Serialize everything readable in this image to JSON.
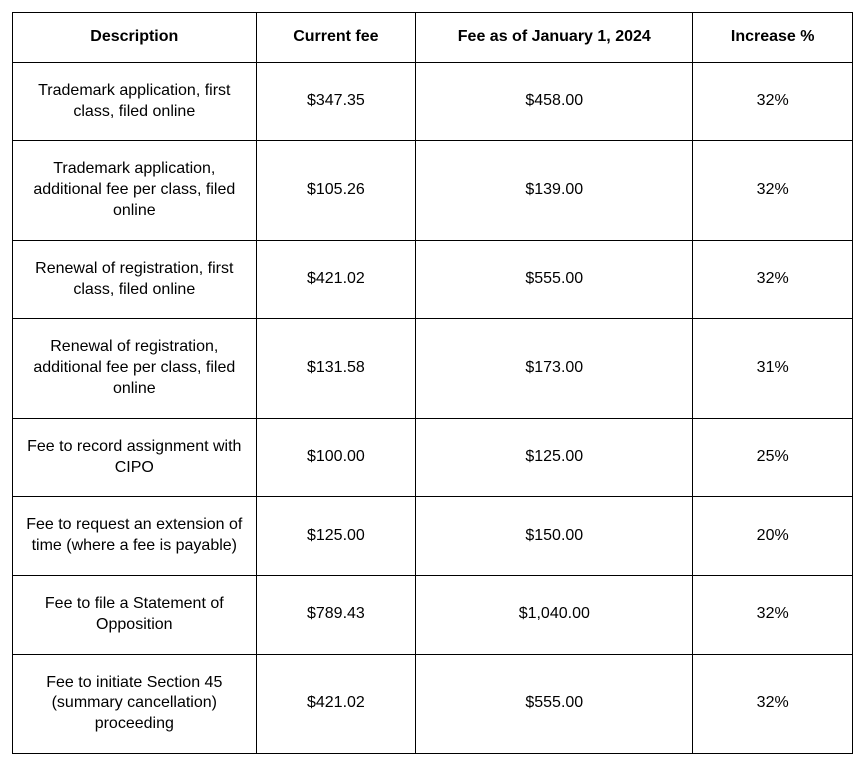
{
  "table": {
    "columns": [
      "Description",
      "Current fee",
      "Fee as of January 1, 2024",
      "Increase %"
    ],
    "rows": [
      {
        "description": "Trademark application, first class, filed online",
        "current": "$347.35",
        "new": "$458.00",
        "increase": "32%"
      },
      {
        "description": "Trademark application, additional fee per class, filed online",
        "current": "$105.26",
        "new": "$139.00",
        "increase": "32%"
      },
      {
        "description": "Renewal of registration, first class, filed online",
        "current": "$421.02",
        "new": "$555.00",
        "increase": "32%"
      },
      {
        "description": "Renewal of registration, additional fee per class, filed online",
        "current": "$131.58",
        "new": "$173.00",
        "increase": "31%"
      },
      {
        "description": "Fee to record assignment with CIPO",
        "current": "$100.00",
        "new": "$125.00",
        "increase": "25%"
      },
      {
        "description": "Fee to request an extension of time (where a fee is payable)",
        "current": "$125.00",
        "new": "$150.00",
        "increase": "20%"
      },
      {
        "description": "Fee to file a Statement of Opposition",
        "current": "$789.43",
        "new": "$1,040.00",
        "increase": "32%"
      },
      {
        "description": "Fee to initiate Section 45 (summary cancellation) proceeding",
        "current": "$421.02",
        "new": "$555.00",
        "increase": "32%"
      }
    ]
  }
}
